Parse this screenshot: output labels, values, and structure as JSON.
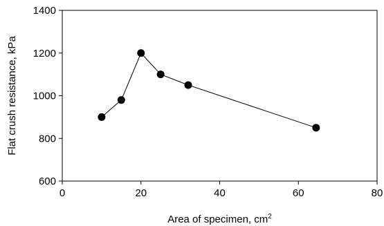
{
  "chart_data": {
    "type": "scatter",
    "xlabel": "Area of specimen, cm",
    "xlabel_superscript": "2",
    "ylabel": "Flat crush resistance, kPa",
    "xlim": [
      0,
      80
    ],
    "ylim": [
      600,
      1400
    ],
    "xticks": [
      0,
      20,
      40,
      60,
      80
    ],
    "yticks": [
      600,
      800,
      1000,
      1200,
      1400
    ],
    "xtick_labels": [
      "0",
      "20",
      "40",
      "60",
      "80"
    ],
    "ytick_labels": [
      "600",
      "800",
      "1000",
      "1200",
      "1400"
    ],
    "grid": false,
    "legend": "none",
    "series": [
      {
        "x": [
          10,
          15,
          20,
          25,
          32,
          64.5
        ],
        "y": [
          900,
          980,
          1200,
          1100,
          1050,
          850
        ],
        "marker": "circle",
        "line": true,
        "marker_color": "#000000",
        "line_color": "#000000"
      }
    ]
  }
}
